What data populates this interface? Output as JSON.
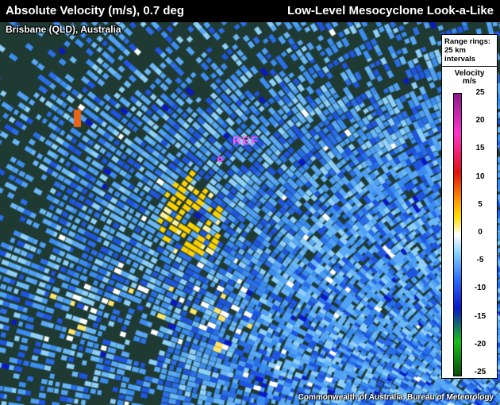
{
  "header": {
    "title_left": "Absolute Velocity (m/s), 0.7 deg",
    "title_right": "Low-Level Mesocyclone Look-a-Like"
  },
  "location_label": "Brisbane (QLD), Australia",
  "marker_label": "REF",
  "credit": "Commonwealth of Australia, Bureau of Meteorology",
  "legend": {
    "range_rings_line1": "Range rings:",
    "range_rings_line2": "25 km",
    "range_rings_line3": "intervals",
    "title_line1": "Velocity",
    "title_line2": "m/s",
    "ticks": [
      "25",
      "20",
      "15",
      "10",
      "5",
      "0",
      "-5",
      "-10",
      "-15",
      "-20",
      "-25"
    ],
    "colors": {
      "max": "#8a1a8a",
      "pink": "#ff33cc",
      "red": "#e01010",
      "orange": "#ff9a00",
      "yellow": "#ffe000",
      "zero": "#ffffff",
      "light_blue": "#7fd0ff",
      "blue": "#2b6cff",
      "dark_blue": "#0a18c8",
      "green": "#18c018",
      "dark_green": "#0b4a0b"
    }
  }
}
